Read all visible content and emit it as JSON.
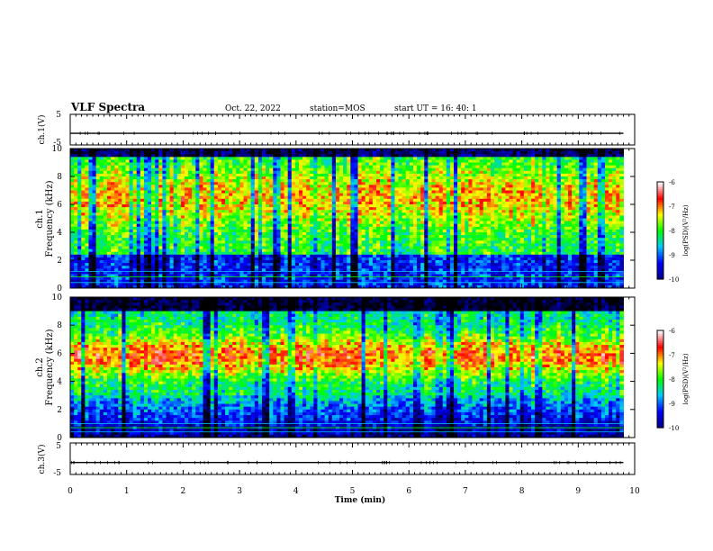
{
  "header": {
    "title": "VLF Spectra",
    "date": "Oct. 22, 2022",
    "station": "station=MOS",
    "start": "start  UT =   16: 40: 1"
  },
  "colors": {
    "waveform": "#000000",
    "colormap": [
      "#000000",
      "#000088",
      "#0000ff",
      "#00c8ff",
      "#00ff00",
      "#ffff00",
      "#ff0000",
      "#ffffff"
    ]
  },
  "chart_data": [
    {
      "type": "line",
      "ylabel": "ch.1(V)",
      "ylim": [
        -5,
        5
      ],
      "yticks": [
        "5",
        "-5"
      ],
      "x": [
        0,
        10
      ],
      "series": [
        {
          "values": [
            -1.2,
            -1.2
          ]
        }
      ]
    },
    {
      "type": "heatmap",
      "ylabel_top": "ch.1",
      "ylabel": "Frequency (kHz)",
      "ylim": [
        0,
        10
      ],
      "yticks": [
        "0",
        "2",
        "4",
        "6",
        "8",
        "10"
      ],
      "colorbar": {
        "label": "log(PSD)(V²/Hz)",
        "range": [
          -10,
          -6
        ],
        "ticks": [
          "-6",
          "-7",
          "-8",
          "-9",
          "-10"
        ]
      }
    },
    {
      "type": "heatmap",
      "ylabel_top": "ch.2",
      "ylabel": "Frequency (kHz)",
      "ylim": [
        0,
        10
      ],
      "yticks": [
        "0",
        "2",
        "4",
        "6",
        "8",
        "10"
      ],
      "colorbar": {
        "label": "log(PSD)(V²/Hz)",
        "range": [
          -10,
          -6
        ],
        "ticks": [
          "-6",
          "-7",
          "-8",
          "-9",
          "-10"
        ]
      }
    },
    {
      "type": "line",
      "ylabel": "ch.3(V)",
      "ylim": [
        -5,
        5
      ],
      "yticks": [
        "5",
        "-5"
      ],
      "x": [
        0,
        10
      ],
      "series": [
        {
          "values": [
            -1.2,
            -1.2
          ]
        }
      ]
    }
  ],
  "xaxis": {
    "label": "Time (min)",
    "range": [
      0,
      10
    ],
    "ticks": [
      "0",
      "1",
      "2",
      "3",
      "4",
      "5",
      "6",
      "7",
      "8",
      "9",
      "10"
    ],
    "data_end": 9.8
  }
}
